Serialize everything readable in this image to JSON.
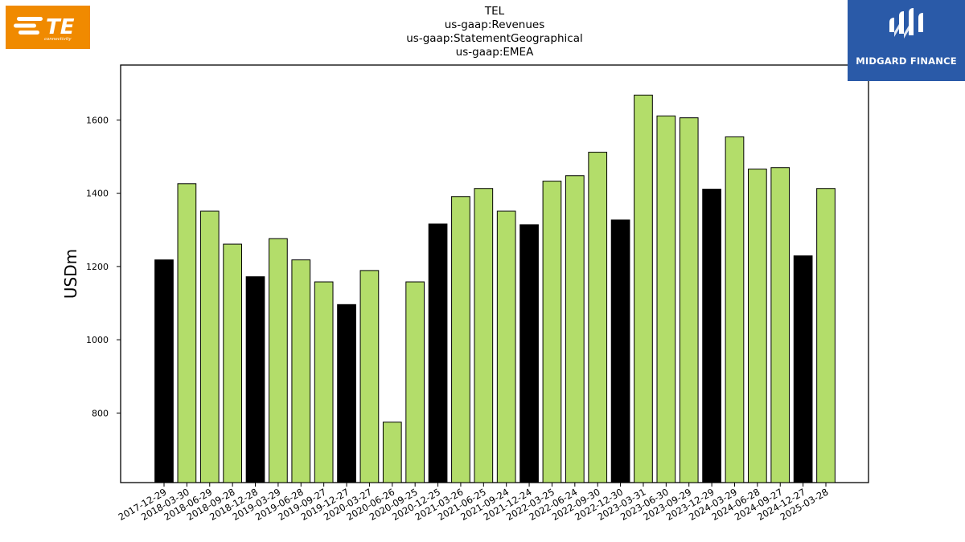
{
  "header": {
    "title_lines": [
      "TEL",
      "us-gaap:Revenues",
      "us-gaap:StatementGeographical",
      "us-gaap:EMEA"
    ]
  },
  "logos": {
    "left": {
      "name": "TE connectivity",
      "text": "TE",
      "subtext": "connectivity",
      "color": "#f08a00"
    },
    "right": {
      "name": "Midgard Finance",
      "text": "MIDGARD FINANCE",
      "color": "#2a5aa8"
    }
  },
  "colors": {
    "annual": "#000000",
    "quarterly": "#b3dd6a",
    "edge": "#000000"
  },
  "chart_data": {
    "type": "bar",
    "title": "TEL us-gaap:Revenues us-gaap:StatementGeographical us-gaap:EMEA",
    "xlabel": "",
    "ylabel": "USDm",
    "ylim": [
      610,
      1750
    ],
    "yticks": [
      800,
      1000,
      1200,
      1400,
      1600
    ],
    "grid": false,
    "legend": "none",
    "categories": [
      "2017-12-29",
      "2018-03-30",
      "2018-06-29",
      "2018-09-28",
      "2018-12-28",
      "2019-03-29",
      "2019-06-28",
      "2019-09-27",
      "2019-12-27",
      "2020-03-27",
      "2020-06-26",
      "2020-09-25",
      "2020-12-25",
      "2021-03-26",
      "2021-06-25",
      "2021-09-24",
      "2021-12-24",
      "2022-03-25",
      "2022-06-24",
      "2022-09-30",
      "2022-12-30",
      "2023-03-31",
      "2023-06-30",
      "2023-09-29",
      "2023-12-29",
      "2024-03-29",
      "2024-06-28",
      "2024-09-27",
      "2024-12-27",
      "2025-03-28"
    ],
    "values": [
      1218,
      1426,
      1351,
      1261,
      1172,
      1276,
      1218,
      1158,
      1096,
      1189,
      775,
      1158,
      1316,
      1391,
      1413,
      1351,
      1314,
      1433,
      1448,
      1512,
      1327,
      1668,
      1611,
      1606,
      1411,
      1554,
      1466,
      1470,
      1229,
      1413
    ],
    "bar_colors": [
      "#000000",
      "#b3dd6a",
      "#b3dd6a",
      "#b3dd6a",
      "#000000",
      "#b3dd6a",
      "#b3dd6a",
      "#b3dd6a",
      "#000000",
      "#b3dd6a",
      "#b3dd6a",
      "#b3dd6a",
      "#000000",
      "#b3dd6a",
      "#b3dd6a",
      "#b3dd6a",
      "#000000",
      "#b3dd6a",
      "#b3dd6a",
      "#b3dd6a",
      "#000000",
      "#b3dd6a",
      "#b3dd6a",
      "#b3dd6a",
      "#000000",
      "#b3dd6a",
      "#b3dd6a",
      "#b3dd6a",
      "#000000",
      "#b3dd6a"
    ]
  }
}
